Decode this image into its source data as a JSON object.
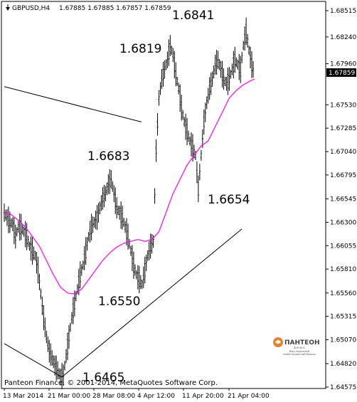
{
  "header": {
    "symbol": "GBPUSD,H4",
    "ohlc": "1.67885 1.67885 1.67857 1.67859",
    "icon": "chart-arrow-icon"
  },
  "footer": {
    "copyright": "Panteon Finance, © 2001-2014, MetaQuotes Software Corp."
  },
  "logo": {
    "name": "ПАНТЕОН",
    "sub": "финанс",
    "tagline_1": "Ваш надежный",
    "tagline_2": "инвестиционный брокер"
  },
  "annotations": [
    {
      "id": "ann_1",
      "text": "1.6841"
    },
    {
      "id": "ann_2",
      "text": "1.6819"
    },
    {
      "id": "ann_3",
      "text": "1.6683"
    },
    {
      "id": "ann_4",
      "text": "1.6654"
    },
    {
      "id": "ann_5",
      "text": "1.6550"
    },
    {
      "id": "ann_6",
      "text": "1.6465"
    }
  ],
  "colors": {
    "bars": "#000000",
    "ma": "#ff00ff",
    "price_tag_bg": "#000000",
    "price_tag_text": "#ffffff",
    "logo_orange": "#e9822d"
  },
  "chart_data": {
    "type": "ohlc",
    "symbol": "GBPUSD",
    "timeframe": "H4",
    "current_price": "1.67859",
    "ylim": [
      1.64575,
      1.68515
    ],
    "y_ticks": [
      "1.68515",
      "1.68240",
      "1.67960",
      "1.67859",
      "1.67530",
      "1.67285",
      "1.67040",
      "1.66795",
      "1.66545",
      "1.66300",
      "1.66055",
      "1.65810",
      "1.65560",
      "1.65315",
      "1.65070",
      "1.64820",
      "1.64575"
    ],
    "x_ticks": [
      "13 Mar 2014",
      "21 Mar 00:00",
      "28 Mar 08:00",
      "4 Apr 12:00",
      "11 Apr 20:00",
      "21 Apr 04:00"
    ],
    "ma_color": "#ff00ff",
    "price_path": [
      [
        0,
        1.664
      ],
      [
        4,
        1.6635
      ],
      [
        8,
        1.663
      ],
      [
        12,
        1.6628
      ],
      [
        16,
        1.6615
      ],
      [
        20,
        1.6625
      ],
      [
        24,
        1.6625
      ],
      [
        28,
        1.662
      ],
      [
        32,
        1.6615
      ],
      [
        36,
        1.6605
      ],
      [
        40,
        1.66
      ],
      [
        44,
        1.6595
      ],
      [
        48,
        1.658
      ],
      [
        52,
        1.6555
      ],
      [
        56,
        1.653
      ],
      [
        60,
        1.651
      ],
      [
        64,
        1.6495
      ],
      [
        68,
        1.6488
      ],
      [
        72,
        1.648
      ],
      [
        76,
        1.6475
      ],
      [
        80,
        1.6468
      ],
      [
        84,
        1.647
      ],
      [
        88,
        1.649
      ],
      [
        92,
        1.651
      ],
      [
        96,
        1.653
      ],
      [
        100,
        1.6545
      ],
      [
        104,
        1.656
      ],
      [
        108,
        1.6575
      ],
      [
        112,
        1.6585
      ],
      [
        116,
        1.66
      ],
      [
        120,
        1.6615
      ],
      [
        124,
        1.6625
      ],
      [
        128,
        1.663
      ],
      [
        132,
        1.6635
      ],
      [
        136,
        1.6645
      ],
      [
        140,
        1.6655
      ],
      [
        144,
        1.666
      ],
      [
        148,
        1.667
      ],
      [
        152,
        1.6675
      ],
      [
        156,
        1.666
      ],
      [
        160,
        1.6645
      ],
      [
        164,
        1.664
      ],
      [
        168,
        1.6635
      ],
      [
        172,
        1.6625
      ],
      [
        176,
        1.6615
      ],
      [
        180,
        1.66
      ],
      [
        184,
        1.6585
      ],
      [
        188,
        1.6575
      ],
      [
        192,
        1.657
      ],
      [
        196,
        1.6565
      ],
      [
        200,
        1.658
      ],
      [
        204,
        1.6595
      ],
      [
        208,
        1.6605
      ],
      [
        212,
        1.661
      ],
      [
        216,
        1.6705
      ],
      [
        220,
        1.676
      ],
      [
        224,
        1.678
      ],
      [
        228,
        1.679
      ],
      [
        232,
        1.68
      ],
      [
        236,
        1.6815
      ],
      [
        240,
        1.6805
      ],
      [
        244,
        1.6785
      ],
      [
        248,
        1.677
      ],
      [
        252,
        1.675
      ],
      [
        256,
        1.6735
      ],
      [
        260,
        1.6725
      ],
      [
        264,
        1.6715
      ],
      [
        268,
        1.6708
      ],
      [
        272,
        1.67
      ],
      [
        276,
        1.6665
      ],
      [
        280,
        1.67
      ],
      [
        284,
        1.6735
      ],
      [
        288,
        1.6755
      ],
      [
        292,
        1.677
      ],
      [
        296,
        1.678
      ],
      [
        300,
        1.6795
      ],
      [
        304,
        1.68
      ],
      [
        308,
        1.679
      ],
      [
        312,
        1.678
      ],
      [
        316,
        1.6775
      ],
      [
        320,
        1.678
      ],
      [
        324,
        1.679
      ],
      [
        328,
        1.68
      ],
      [
        332,
        1.6795
      ],
      [
        336,
        1.679
      ],
      [
        340,
        1.6815
      ],
      [
        344,
        1.683
      ],
      [
        348,
        1.681
      ],
      [
        352,
        1.6795
      ],
      [
        356,
        1.6785
      ]
    ],
    "ma_path": [
      [
        0,
        1.664
      ],
      [
        10,
        1.6638
      ],
      [
        20,
        1.6632
      ],
      [
        30,
        1.6625
      ],
      [
        40,
        1.6615
      ],
      [
        50,
        1.6605
      ],
      [
        60,
        1.659
      ],
      [
        70,
        1.6575
      ],
      [
        80,
        1.6562
      ],
      [
        90,
        1.6556
      ],
      [
        100,
        1.6555
      ],
      [
        110,
        1.656
      ],
      [
        120,
        1.657
      ],
      [
        130,
        1.658
      ],
      [
        140,
        1.659
      ],
      [
        150,
        1.6598
      ],
      [
        160,
        1.6604
      ],
      [
        170,
        1.6608
      ],
      [
        180,
        1.661
      ],
      [
        190,
        1.6612
      ],
      [
        200,
        1.661
      ],
      [
        210,
        1.6612
      ],
      [
        220,
        1.662
      ],
      [
        230,
        1.664
      ],
      [
        240,
        1.666
      ],
      [
        250,
        1.6675
      ],
      [
        260,
        1.669
      ],
      [
        270,
        1.67
      ],
      [
        280,
        1.671
      ],
      [
        290,
        1.6715
      ],
      [
        300,
        1.673
      ],
      [
        310,
        1.6745
      ],
      [
        320,
        1.676
      ],
      [
        330,
        1.6768
      ],
      [
        340,
        1.6774
      ],
      [
        350,
        1.6778
      ],
      [
        356,
        1.678
      ]
    ],
    "trendlines": [
      {
        "name": "upper-trend",
        "x": [
          0,
          195
        ],
        "y": [
          1.6772,
          1.6735
        ]
      },
      {
        "name": "lower-trend",
        "x": [
          82,
          338
        ],
        "y": [
          1.6468,
          1.6623
        ]
      },
      {
        "name": "left-trend",
        "x": [
          0,
          82
        ],
        "y": [
          1.6503,
          1.6468
        ]
      }
    ]
  }
}
